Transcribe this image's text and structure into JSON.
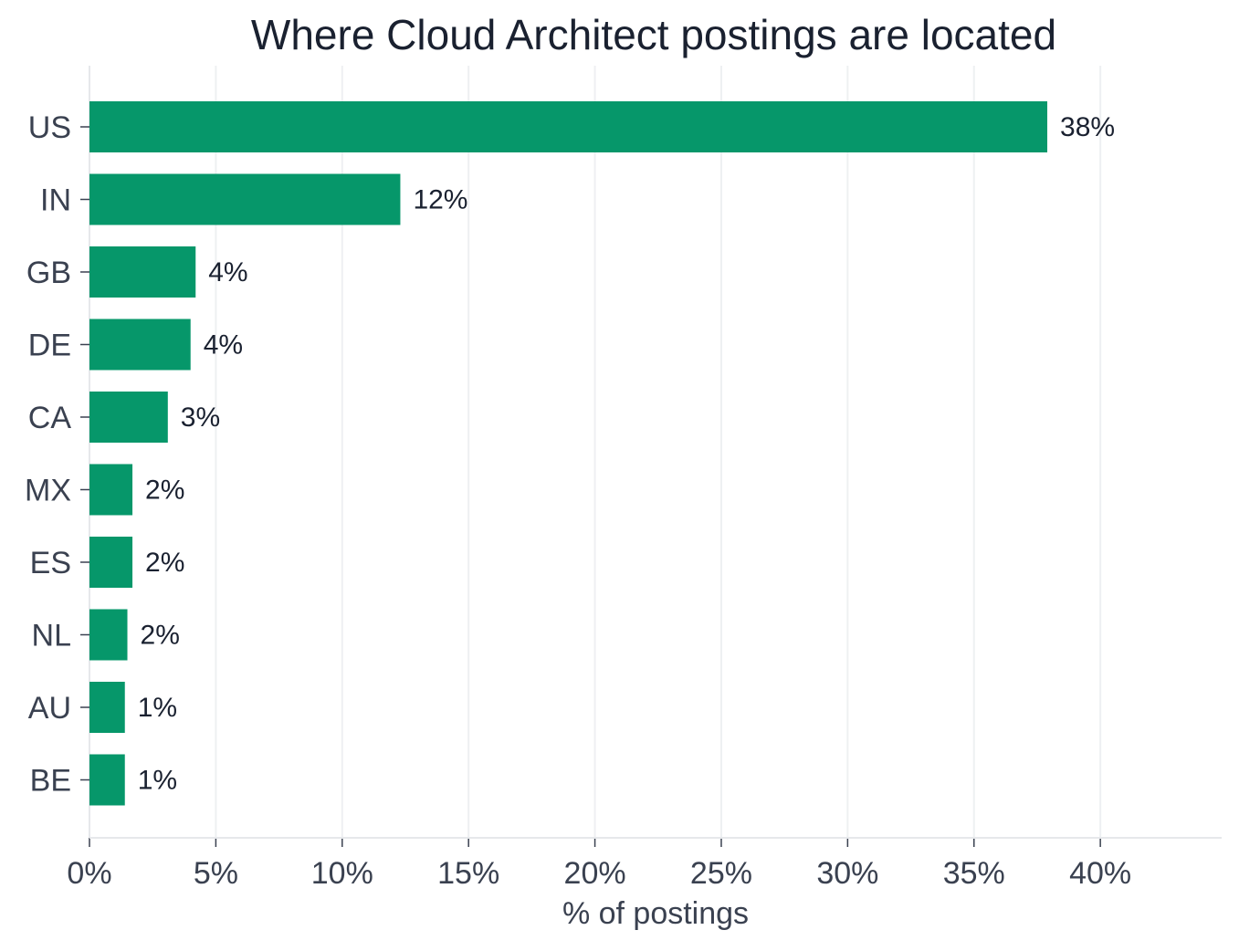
{
  "chart_data": {
    "type": "bar",
    "orientation": "horizontal",
    "title": "Where Cloud Architect postings are located",
    "xlabel": "% of postings",
    "ylabel": "",
    "categories": [
      "US",
      "IN",
      "GB",
      "DE",
      "CA",
      "MX",
      "ES",
      "NL",
      "AU",
      "BE"
    ],
    "values": [
      37.9,
      12.3,
      4.2,
      4.0,
      3.1,
      1.7,
      1.7,
      1.5,
      1.4,
      1.4
    ],
    "data_labels": [
      "38%",
      "12%",
      "4%",
      "4%",
      "3%",
      "2%",
      "2%",
      "2%",
      "1%",
      "1%"
    ],
    "xlim": [
      0,
      44.8
    ],
    "xticks": [
      0,
      5,
      10,
      15,
      20,
      25,
      30,
      35,
      40
    ],
    "xtick_labels": [
      "0%",
      "5%",
      "10%",
      "15%",
      "20%",
      "25%",
      "30%",
      "35%",
      "40%"
    ],
    "grid": "vertical",
    "bar_color": "#06976a"
  }
}
